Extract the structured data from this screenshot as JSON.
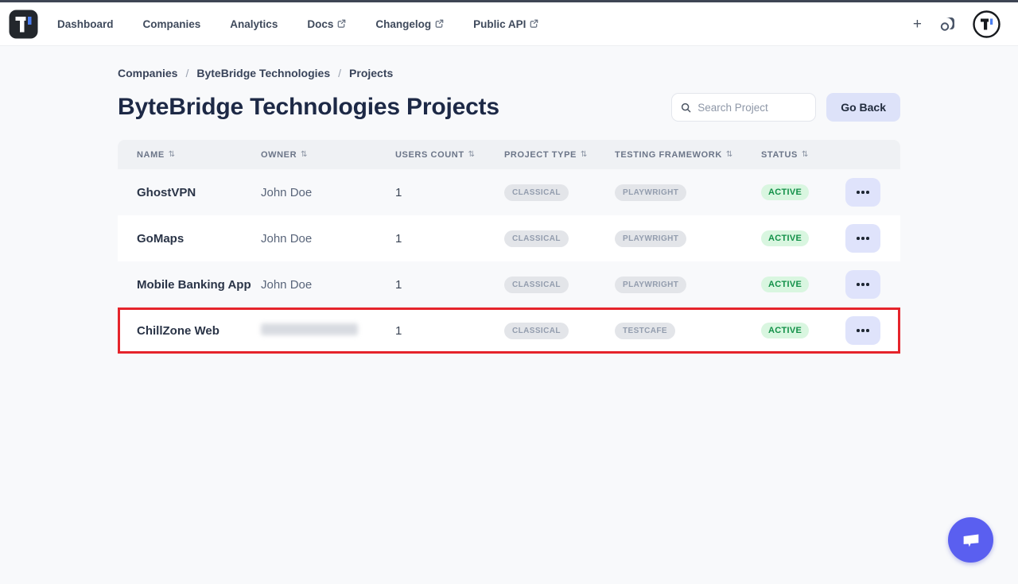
{
  "topbar": {
    "plus_label": "+",
    "nav_items": [
      {
        "label": "Dashboard",
        "external": false
      },
      {
        "label": "Companies",
        "external": false
      },
      {
        "label": "Analytics",
        "external": false
      },
      {
        "label": "Docs",
        "external": true
      },
      {
        "label": "Changelog",
        "external": true
      },
      {
        "label": "Public API",
        "external": true
      }
    ]
  },
  "breadcrumb": {
    "separator": "/",
    "items": [
      "Companies",
      "ByteBridge Technologies",
      "Projects"
    ]
  },
  "page": {
    "title": "ByteBridge Technologies Projects"
  },
  "toolbar": {
    "search_placeholder": "Search Project",
    "go_back_label": "Go Back"
  },
  "table": {
    "sort_glyph": "⇅",
    "headers": [
      "NAME",
      "OWNER",
      "USERS COUNT",
      "PROJECT TYPE",
      "TESTING FRAMEWORK",
      "STATUS"
    ],
    "rows": [
      {
        "name": "GhostVPN",
        "owner": "John Doe",
        "owner_redacted": false,
        "users_count": "1",
        "project_type": "CLASSICAL",
        "testing_framework": "PLAYWRIGHT",
        "status": "ACTIVE",
        "highlighted": false
      },
      {
        "name": "GoMaps",
        "owner": "John Doe",
        "owner_redacted": false,
        "users_count": "1",
        "project_type": "CLASSICAL",
        "testing_framework": "PLAYWRIGHT",
        "status": "ACTIVE",
        "highlighted": false
      },
      {
        "name": "Mobile Banking App",
        "owner": "John Doe",
        "owner_redacted": false,
        "users_count": "1",
        "project_type": "CLASSICAL",
        "testing_framework": "PLAYWRIGHT",
        "status": "ACTIVE",
        "highlighted": false
      },
      {
        "name": "ChillZone Web",
        "owner": "",
        "owner_redacted": true,
        "users_count": "1",
        "project_type": "CLASSICAL",
        "testing_framework": "TESTCAFE",
        "status": "ACTIVE",
        "highlighted": true
      }
    ]
  },
  "colors": {
    "top_accent": "#3e4554",
    "brand_blue": "#4b7ef0",
    "go_back_bg": "#dde2f9",
    "badge_bg": "#e3e5e9",
    "status_active_bg": "#d9f6e0",
    "status_active_text": "#129048",
    "highlight_border": "#e5242b",
    "chat_fab": "#5a5ff0"
  }
}
